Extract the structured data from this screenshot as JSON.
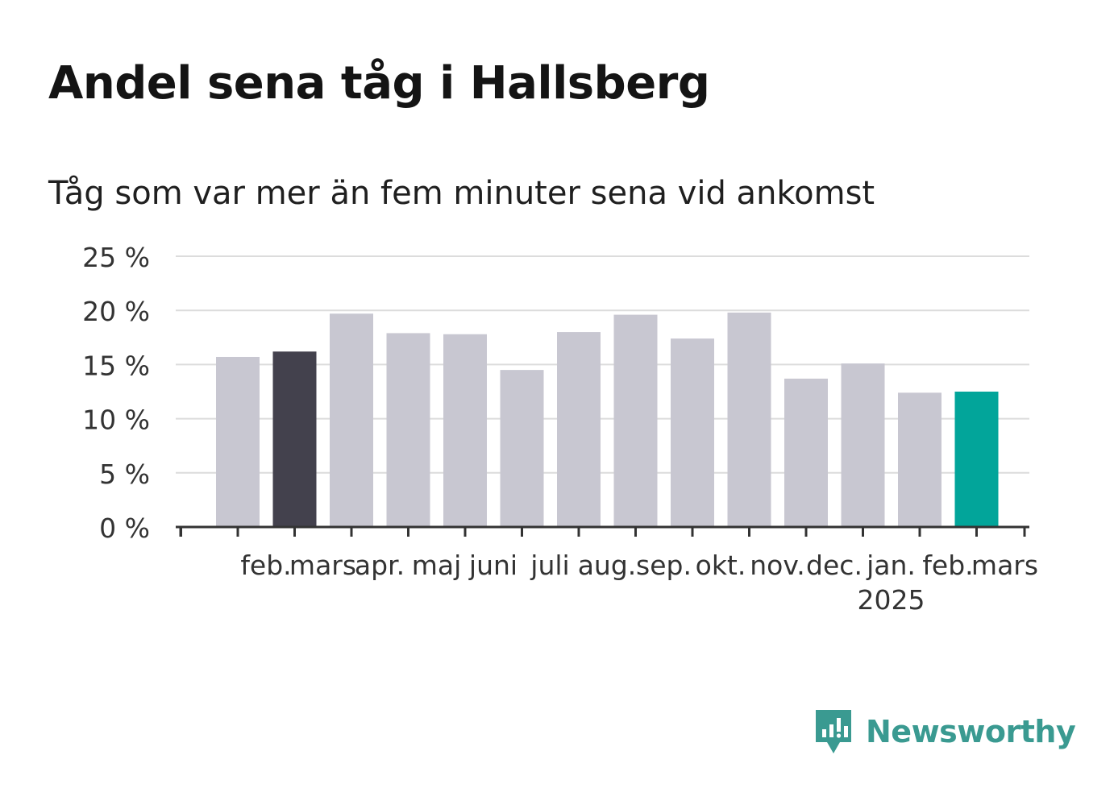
{
  "title": "Andel sena tåg i Hallsberg",
  "subtitle": "Tåg som var mer än fem minuter sena vid ankomst",
  "brand": {
    "name": "Newsworthy",
    "icon": "newsworthy-logo-icon",
    "color": "#3a9a91"
  },
  "chart_data": {
    "type": "bar",
    "categories": [
      "feb.",
      "mars",
      "apr.",
      "maj",
      "juni",
      "juli",
      "aug.",
      "sep.",
      "okt.",
      "nov.",
      "dec.",
      "jan.",
      "feb.",
      "mars"
    ],
    "category_sublabels": [
      "",
      "",
      "",
      "",
      "",
      "",
      "",
      "",
      "",
      "",
      "",
      "2025",
      "",
      ""
    ],
    "values": [
      15.7,
      16.2,
      19.7,
      17.9,
      17.8,
      14.5,
      18.0,
      19.6,
      17.4,
      19.8,
      13.7,
      15.1,
      12.4,
      12.5
    ],
    "bar_colors": [
      "#c8c7d1",
      "#43414d",
      "#c8c7d1",
      "#c8c7d1",
      "#c8c7d1",
      "#c8c7d1",
      "#c8c7d1",
      "#c8c7d1",
      "#c8c7d1",
      "#c8c7d1",
      "#c8c7d1",
      "#c8c7d1",
      "#c8c7d1",
      "#02a59a"
    ],
    "yticks": [
      0,
      5,
      10,
      15,
      20,
      25
    ],
    "ytick_labels": [
      "0 %",
      "5 %",
      "10 %",
      "15 %",
      "20 %",
      "25 %"
    ],
    "ylim": [
      0,
      25
    ],
    "xlabel": "",
    "ylabel": "",
    "grid": true,
    "legend": "none"
  }
}
